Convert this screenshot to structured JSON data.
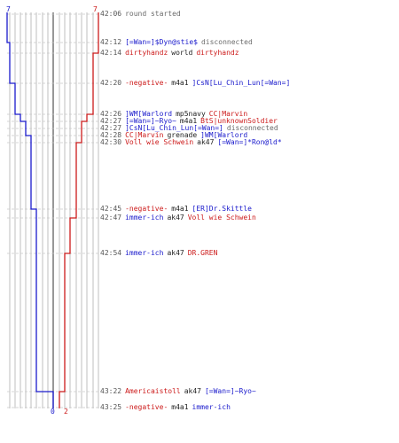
{
  "scores": {
    "blue_start": "7",
    "red_start": "7",
    "blue_end": "0",
    "red_end": "2"
  },
  "colors": {
    "blue": "#1a1acc",
    "red": "#cc1a1a",
    "grid": "#b8b8b8",
    "grid_dark": "#606060",
    "dash": "#c8c8c8"
  },
  "events": [
    {
      "time": "42:06",
      "parts": [
        {
          "text": "round started",
          "c": "gray"
        }
      ]
    },
    {
      "time": "42:12",
      "parts": [
        {
          "text": "[=Wan=]$Dyn@stie$",
          "c": "blue"
        },
        {
          "text": "disconnected",
          "c": "gray"
        }
      ]
    },
    {
      "time": "42:14",
      "parts": [
        {
          "text": "dirtyhandz",
          "c": "red"
        },
        {
          "text": "world",
          "c": "dark"
        },
        {
          "text": "dirtyhandz",
          "c": "red"
        }
      ]
    },
    {
      "time": "42:20",
      "parts": [
        {
          "text": "-negative-",
          "c": "red"
        },
        {
          "text": "m4a1",
          "c": "dark"
        },
        {
          "text": "]CsN[Lu_Chin_Lun[=Wan=]",
          "c": "blue"
        }
      ]
    },
    {
      "time": "42:26",
      "parts": [
        {
          "text": "]WM[Warlord",
          "c": "blue"
        },
        {
          "text": "mp5navy",
          "c": "dark"
        },
        {
          "text": "CC|Marvin",
          "c": "red"
        }
      ]
    },
    {
      "time": "42:27",
      "parts": [
        {
          "text": "[=Wan=]~Ryo~",
          "c": "blue"
        },
        {
          "text": "m4a1",
          "c": "dark"
        },
        {
          "text": "BtS|unknownSoldier",
          "c": "red"
        }
      ]
    },
    {
      "time": "42:27",
      "parts": [
        {
          "text": "]CsN[Lu_Chin_Lun[=Wan=]",
          "c": "blue"
        },
        {
          "text": "disconnected",
          "c": "gray"
        }
      ]
    },
    {
      "time": "42:28",
      "parts": [
        {
          "text": "CC|Marvin",
          "c": "red"
        },
        {
          "text": "grenade",
          "c": "dark"
        },
        {
          "text": "]WM[Warlord",
          "c": "blue"
        }
      ]
    },
    {
      "time": "42:30",
      "parts": [
        {
          "text": "Voll wie Schwein",
          "c": "red"
        },
        {
          "text": "ak47",
          "c": "dark"
        },
        {
          "text": "[=Wan=]*Ron@ld*",
          "c": "blue"
        }
      ]
    },
    {
      "time": "42:45",
      "parts": [
        {
          "text": "-negative-",
          "c": "red"
        },
        {
          "text": "m4a1",
          "c": "dark"
        },
        {
          "text": "[ER]Dr.Skittle",
          "c": "blue"
        }
      ]
    },
    {
      "time": "42:47",
      "parts": [
        {
          "text": "immer-ich",
          "c": "blue"
        },
        {
          "text": "ak47",
          "c": "dark"
        },
        {
          "text": "Voll wie Schwein",
          "c": "red"
        }
      ]
    },
    {
      "time": "42:54",
      "parts": [
        {
          "text": "immer-ich",
          "c": "blue"
        },
        {
          "text": "ak47",
          "c": "dark"
        },
        {
          "text": "DR.GREN",
          "c": "red"
        }
      ]
    },
    {
      "time": "43:22",
      "parts": [
        {
          "text": "Americaistoll",
          "c": "red"
        },
        {
          "text": "ak47",
          "c": "dark"
        },
        {
          "text": "[=Wan=]~Ryo~",
          "c": "blue"
        }
      ]
    },
    {
      "time": "43:25",
      "parts": [
        {
          "text": "-negative-",
          "c": "red"
        },
        {
          "text": "m4a1",
          "c": "dark"
        },
        {
          "text": "immer-ich",
          "c": "blue"
        }
      ]
    }
  ]
}
